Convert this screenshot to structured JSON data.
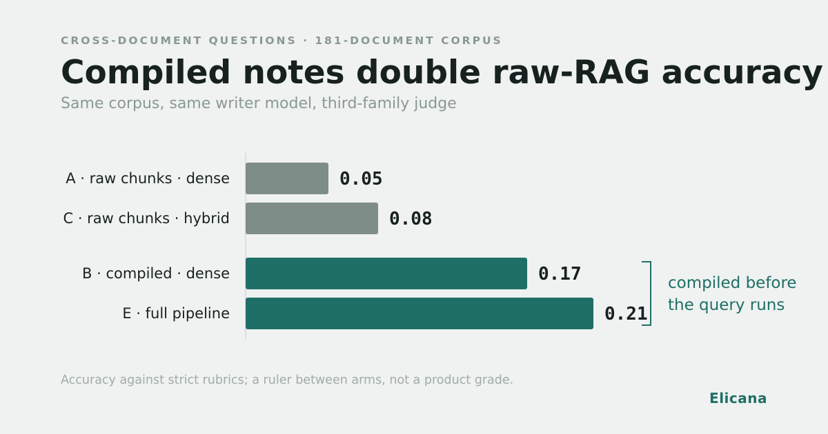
{
  "eyebrow": "CROSS-DOCUMENT QUESTIONS · 181-DOCUMENT CORPUS",
  "title": "Compiled notes double raw-RAG accuracy",
  "subtitle": "Same corpus, same writer model, third-family judge",
  "footnote": "Accuracy against strict rubrics; a ruler between arms, not a product grade.",
  "brand": "Elicana",
  "colors": {
    "raw": "#7f8d88",
    "compiled": "#1f6f66",
    "label": "#17211f",
    "axis": "#d3dad7",
    "annotation": "#1f6f66"
  },
  "chart_data": {
    "type": "bar",
    "orientation": "horizontal",
    "categories": [
      "A · raw chunks · dense",
      "C · raw chunks · hybrid",
      "B · compiled · dense",
      "E · full pipeline"
    ],
    "values": [
      0.05,
      0.08,
      0.17,
      0.21
    ],
    "value_labels": [
      "0.05",
      "0.08",
      "0.17",
      "0.21"
    ],
    "groups": [
      "raw",
      "raw",
      "compiled",
      "compiled"
    ],
    "xlim": [
      0,
      0.21
    ],
    "grid": false,
    "annotation": {
      "lines": [
        "compiled before",
        "the query runs"
      ],
      "spans_categories": [
        2,
        3
      ]
    }
  }
}
